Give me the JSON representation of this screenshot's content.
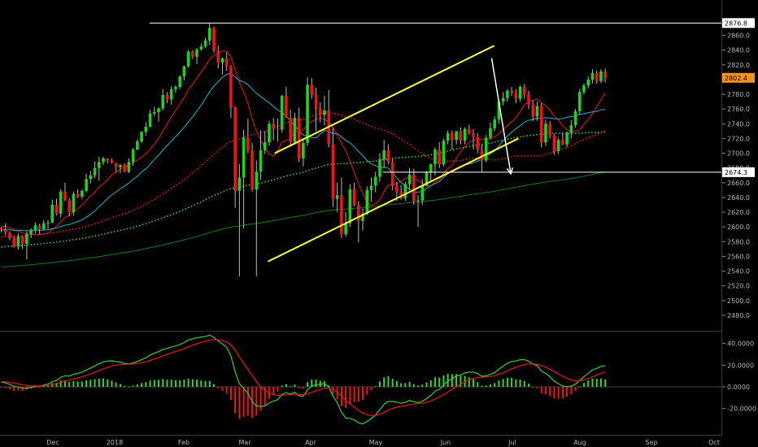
{
  "chart_data": {
    "type": "candlestick",
    "price_axis": {
      "ylim": [
        2470,
        2886
      ],
      "ticks": [
        2480,
        2500,
        2520,
        2540,
        2560,
        2580,
        2600,
        2620,
        2640,
        2660,
        2680,
        2700,
        2720,
        2740,
        2760,
        2780,
        2800,
        2820,
        2840,
        2860
      ],
      "tick_labels": [
        "2480.0",
        "2500.0",
        "2520.0",
        "2540.0",
        "2560.0",
        "2580.0",
        "2600.0",
        "2620.0",
        "2640.0",
        "2660.0",
        "2680.0",
        "2700.0",
        "2720.0",
        "2740.0",
        "2760.0",
        "2780.0",
        "2800.0",
        "2820.0",
        "2840.0",
        "2860.0"
      ]
    },
    "x_axis": {
      "labels": [
        "Dec",
        "2018",
        "Feb",
        "Mar",
        "Apr",
        "May",
        "Jun",
        "Jul",
        "Aug",
        "Sep",
        "Oct"
      ]
    },
    "price_tags": [
      {
        "label": "2876.8",
        "value": 2876.8,
        "color": "#ffffff"
      },
      {
        "label": "2802.4",
        "value": 2802.4,
        "color": "#f7931a"
      },
      {
        "label": "2674.3",
        "value": 2674.3,
        "color": "#ffffff"
      }
    ],
    "candles": [
      [
        2598,
        2600,
        2593,
        2596
      ],
      [
        2596,
        2605,
        2589,
        2592
      ],
      [
        2592,
        2594,
        2582,
        2585
      ],
      [
        2585,
        2587,
        2572,
        2573
      ],
      [
        2573,
        2591,
        2569,
        2587
      ],
      [
        2587,
        2588,
        2570,
        2577
      ],
      [
        2577,
        2594,
        2556,
        2590
      ],
      [
        2590,
        2598,
        2585,
        2596
      ],
      [
        2596,
        2606,
        2591,
        2602
      ],
      [
        2602,
        2604,
        2590,
        2597
      ],
      [
        2597,
        2609,
        2595,
        2605
      ],
      [
        2605,
        2609,
        2597,
        2606
      ],
      [
        2606,
        2637,
        2605,
        2630
      ],
      [
        2630,
        2638,
        2616,
        2618
      ],
      [
        2618,
        2651,
        2613,
        2648
      ],
      [
        2648,
        2660,
        2635,
        2636
      ],
      [
        2636,
        2639,
        2614,
        2620
      ],
      [
        2620,
        2648,
        2615,
        2645
      ],
      [
        2645,
        2651,
        2639,
        2641
      ],
      [
        2641,
        2651,
        2638,
        2649
      ],
      [
        2649,
        2672,
        2647,
        2665
      ],
      [
        2665,
        2676,
        2659,
        2670
      ],
      [
        2670,
        2689,
        2666,
        2680
      ],
      [
        2680,
        2695,
        2663,
        2688
      ],
      [
        2688,
        2695,
        2684,
        2693
      ],
      [
        2693,
        2693,
        2686,
        2690
      ],
      [
        2690,
        2693,
        2686,
        2687
      ],
      [
        2687,
        2687,
        2674,
        2681
      ],
      [
        2681,
        2685,
        2673,
        2684
      ],
      [
        2684,
        2686,
        2674,
        2675
      ],
      [
        2675,
        2693,
        2673,
        2688
      ],
      [
        2688,
        2707,
        2683,
        2705
      ],
      [
        2705,
        2719,
        2704,
        2716
      ],
      [
        2716,
        2730,
        2714,
        2729
      ],
      [
        2729,
        2742,
        2724,
        2736
      ],
      [
        2736,
        2759,
        2735,
        2754
      ],
      [
        2754,
        2763,
        2750,
        2756
      ],
      [
        2756,
        2762,
        2743,
        2761
      ],
      [
        2761,
        2787,
        2758,
        2779
      ],
      [
        2779,
        2783,
        2768,
        2773
      ],
      [
        2773,
        2791,
        2766,
        2787
      ],
      [
        2787,
        2792,
        2782,
        2790
      ],
      [
        2790,
        2806,
        2787,
        2804
      ],
      [
        2804,
        2819,
        2799,
        2818
      ],
      [
        2818,
        2840,
        2816,
        2838
      ],
      [
        2838,
        2840,
        2828,
        2831
      ],
      [
        2831,
        2843,
        2821,
        2841
      ],
      [
        2841,
        2849,
        2839,
        2845
      ],
      [
        2845,
        2857,
        2843,
        2853
      ],
      [
        2853,
        2877,
        2847,
        2870
      ],
      [
        2870,
        2872,
        2836,
        2839
      ],
      [
        2839,
        2846,
        2815,
        2823
      ],
      [
        2823,
        2830,
        2807,
        2829
      ],
      [
        2829,
        2837,
        2812,
        2818
      ],
      [
        2818,
        2820,
        2748,
        2762
      ],
      [
        2762,
        2764,
        2626,
        2649
      ],
      [
        2649,
        2685,
        2533,
        2667
      ],
      [
        2667,
        2732,
        2598,
        2721
      ],
      [
        2721,
        2747,
        2700,
        2704
      ],
      [
        2704,
        2714,
        2648,
        2651
      ],
      [
        2651,
        2690,
        2533,
        2675
      ],
      [
        2675,
        2731,
        2664,
        2704
      ],
      [
        2704,
        2730,
        2699,
        2715
      ],
      [
        2715,
        2744,
        2710,
        2740
      ],
      [
        2740,
        2748,
        2718,
        2733
      ],
      [
        2733,
        2747,
        2716,
        2732
      ],
      [
        2732,
        2779,
        2728,
        2778
      ],
      [
        2778,
        2790,
        2748,
        2748
      ],
      [
        2748,
        2759,
        2709,
        2715
      ],
      [
        2715,
        2755,
        2712,
        2748
      ],
      [
        2748,
        2762,
        2688,
        2693
      ],
      [
        2693,
        2720,
        2682,
        2714
      ],
      [
        2714,
        2803,
        2710,
        2793
      ],
      [
        2793,
        2802,
        2774,
        2779
      ],
      [
        2779,
        2789,
        2730,
        2760
      ],
      [
        2760,
        2769,
        2742,
        2752
      ],
      [
        2752,
        2778,
        2738,
        2758
      ],
      [
        2758,
        2786,
        2708,
        2712
      ],
      [
        2712,
        2735,
        2627,
        2638
      ],
      [
        2638,
        2660,
        2620,
        2643
      ],
      [
        2643,
        2667,
        2585,
        2590
      ],
      [
        2590,
        2620,
        2587,
        2605
      ],
      [
        2605,
        2658,
        2600,
        2651
      ],
      [
        2651,
        2660,
        2628,
        2630
      ],
      [
        2630,
        2635,
        2579,
        2608
      ],
      [
        2608,
        2625,
        2595,
        2618
      ],
      [
        2618,
        2655,
        2616,
        2650
      ],
      [
        2650,
        2667,
        2634,
        2656
      ],
      [
        2656,
        2675,
        2647,
        2668
      ],
      [
        2668,
        2700,
        2661,
        2692
      ],
      [
        2692,
        2718,
        2680,
        2704
      ],
      [
        2704,
        2712,
        2685,
        2688
      ],
      [
        2688,
        2692,
        2650,
        2656
      ],
      [
        2656,
        2661,
        2635,
        2648
      ],
      [
        2648,
        2657,
        2637,
        2639
      ],
      [
        2639,
        2661,
        2635,
        2658
      ],
      [
        2658,
        2680,
        2650,
        2671
      ],
      [
        2671,
        2679,
        2630,
        2635
      ],
      [
        2635,
        2643,
        2600,
        2636
      ],
      [
        2636,
        2665,
        2630,
        2656
      ],
      [
        2656,
        2676,
        2655,
        2674
      ],
      [
        2674,
        2686,
        2662,
        2685
      ],
      [
        2685,
        2708,
        2670,
        2705
      ],
      [
        2705,
        2715,
        2680,
        2685
      ],
      [
        2685,
        2720,
        2682,
        2717
      ],
      [
        2717,
        2731,
        2712,
        2727
      ],
      [
        2727,
        2731,
        2705,
        2718
      ],
      [
        2718,
        2730,
        2712,
        2730
      ],
      [
        2730,
        2735,
        2712,
        2717
      ],
      [
        2717,
        2735,
        2712,
        2733
      ],
      [
        2733,
        2739,
        2725,
        2727
      ],
      [
        2727,
        2733,
        2705,
        2722
      ],
      [
        2722,
        2727,
        2700,
        2705
      ],
      [
        2705,
        2712,
        2675,
        2690
      ],
      [
        2690,
        2725,
        2688,
        2721
      ],
      [
        2721,
        2742,
        2718,
        2734
      ],
      [
        2734,
        2750,
        2730,
        2746
      ],
      [
        2746,
        2772,
        2740,
        2770
      ],
      [
        2770,
        2783,
        2765,
        2775
      ],
      [
        2775,
        2787,
        2770,
        2785
      ],
      [
        2785,
        2790,
        2778,
        2782
      ],
      [
        2782,
        2787,
        2768,
        2774
      ],
      [
        2774,
        2792,
        2770,
        2790
      ],
      [
        2790,
        2794,
        2774,
        2780
      ],
      [
        2780,
        2785,
        2760,
        2766
      ],
      [
        2766,
        2772,
        2744,
        2750
      ],
      [
        2750,
        2770,
        2744,
        2764
      ],
      [
        2764,
        2768,
        2708,
        2715
      ],
      [
        2715,
        2745,
        2710,
        2740
      ],
      [
        2740,
        2744,
        2720,
        2724
      ],
      [
        2724,
        2726,
        2698,
        2703
      ],
      [
        2703,
        2720,
        2699,
        2718
      ],
      [
        2718,
        2728,
        2711,
        2712
      ],
      [
        2712,
        2730,
        2708,
        2728
      ],
      [
        2728,
        2745,
        2720,
        2738
      ],
      [
        2738,
        2760,
        2735,
        2757
      ],
      [
        2757,
        2787,
        2753,
        2783
      ],
      [
        2783,
        2795,
        2780,
        2792
      ],
      [
        2792,
        2804,
        2788,
        2800
      ],
      [
        2800,
        2814,
        2795,
        2809
      ],
      [
        2809,
        2812,
        2794,
        2798
      ],
      [
        2798,
        2814,
        2795,
        2811
      ],
      [
        2811,
        2815,
        2796,
        2802
      ]
    ],
    "moving_averages": [
      {
        "name": "",
        "color": "#e8151b",
        "style": "solid",
        "period": 10
      },
      {
        "name": "",
        "color": "#22b5c9",
        "style": "solid",
        "period": 20
      },
      {
        "name": "",
        "color": "#e8151b",
        "style": "dotted",
        "period": 50
      },
      {
        "name": "",
        "color": "#3ccc3c",
        "style": "dotted",
        "period": 100
      },
      {
        "name": "",
        "color": "#1a7a1a",
        "style": "solid",
        "period": 200
      }
    ],
    "annotations": {
      "channel": {
        "upper": [
          {
            "bar": 64.3,
            "price": 2700
          },
          {
            "bar": 115.9,
            "price": 2846
          }
        ],
        "lower": [
          {
            "bar": 62.7,
            "price": 2553
          },
          {
            "bar": 121.6,
            "price": 2720
          }
        ],
        "color": "#ffff33"
      },
      "horizontal_lines": [
        {
          "price": 2876.8,
          "from_bar": 34.9,
          "color": "#ffffff"
        },
        {
          "price": 2674.3,
          "from_bar": 89.7,
          "color": "#ffffff"
        }
      ],
      "arrow": {
        "from": {
          "bar": 115.3,
          "price": 2829
        },
        "to": {
          "bar": 119.8,
          "price": 2672
        },
        "color": "#ffffff"
      }
    },
    "oscillator": {
      "ylim": [
        -42,
        48
      ],
      "ticks": [
        40,
        20,
        0,
        -20
      ],
      "tick_labels": [
        "40.0000",
        "20.0000",
        "0.0000",
        "-20.0000"
      ],
      "colors": {
        "fast": "#3ccc3c",
        "slow": "#e8151b",
        "hist_pos": "#3ccc3c",
        "hist_neg": "#e8151b"
      }
    }
  }
}
